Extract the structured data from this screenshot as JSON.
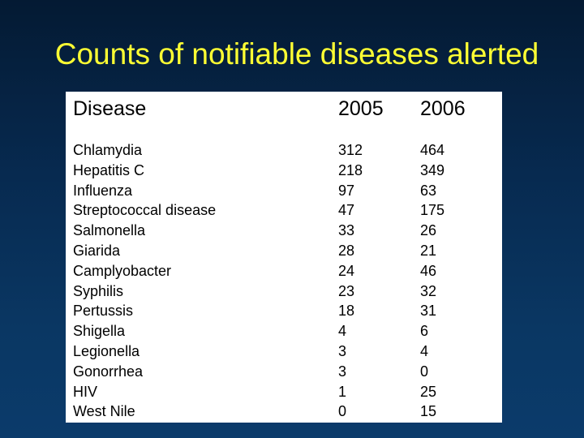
{
  "title": "Counts of notifiable diseases alerted",
  "table": {
    "headers": [
      "Disease",
      "2005",
      "2006"
    ],
    "rows": [
      [
        "Chlamydia",
        "312",
        "464"
      ],
      [
        "Hepatitis C",
        "218",
        "349"
      ],
      [
        "Influenza",
        "97",
        "63"
      ],
      [
        "Streptococcal disease",
        "47",
        "175"
      ],
      [
        "Salmonella",
        "33",
        "26"
      ],
      [
        "Giarida",
        "28",
        "21"
      ],
      [
        "Camplyobacter",
        "24",
        "46"
      ],
      [
        "Syphilis",
        "23",
        "32"
      ],
      [
        "Pertussis",
        "18",
        "31"
      ],
      [
        "Shigella",
        "4",
        "6"
      ],
      [
        "Legionella",
        "3",
        "4"
      ],
      [
        "Gonorrhea",
        "3",
        "0"
      ],
      [
        "HIV",
        "1",
        "25"
      ],
      [
        "West Nile",
        "0",
        "15"
      ]
    ]
  }
}
